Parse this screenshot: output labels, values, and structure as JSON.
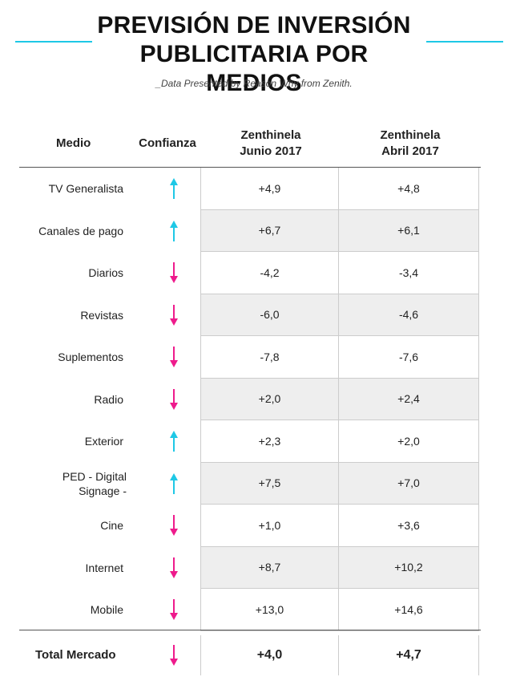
{
  "header": {
    "title_line1": "PREVISIÓN DE INVERSIÓN",
    "title_line2": "PUBLICITARIA POR MEDIOS",
    "subtitle": "_Data Presented by Reason Why from Zenith."
  },
  "colors": {
    "accent_up": "#1ec8e6",
    "accent_down": "#ee1b8c"
  },
  "table": {
    "columns": {
      "medio": "Medio",
      "confianza": "Confianza",
      "junio_l1": "Zenthinela",
      "junio_l2": "Junio 2017",
      "abril_l1": "Zenthinela",
      "abril_l2": "Abril 2017"
    },
    "rows": [
      {
        "medio": "TV Generalista",
        "trend": "up",
        "icon": "arrow-up-icon",
        "junio": "+4,9",
        "abril": "+4,8"
      },
      {
        "medio": "Canales de pago",
        "trend": "up",
        "icon": "arrow-up-icon",
        "junio": "+6,7",
        "abril": "+6,1"
      },
      {
        "medio": "Diarios",
        "trend": "down",
        "icon": "arrow-down-icon",
        "junio": "-4,2",
        "abril": "-3,4"
      },
      {
        "medio": "Revistas",
        "trend": "down",
        "icon": "arrow-down-icon",
        "junio": "-6,0",
        "abril": "-4,6"
      },
      {
        "medio": "Suplementos",
        "trend": "down",
        "icon": "arrow-down-icon",
        "junio": "-7,8",
        "abril": "-7,6"
      },
      {
        "medio": "Radio",
        "trend": "down",
        "icon": "arrow-down-icon",
        "junio": "+2,0",
        "abril": "+2,4"
      },
      {
        "medio": "Exterior",
        "trend": "up",
        "icon": "arrow-up-icon",
        "junio": "+2,3",
        "abril": "+2,0"
      },
      {
        "medio": "PED - Digital Signage -",
        "trend": "up",
        "icon": "arrow-up-icon",
        "junio": "+7,5",
        "abril": "+7,0"
      },
      {
        "medio": "Cine",
        "trend": "down",
        "icon": "arrow-down-icon",
        "junio": "+1,0",
        "abril": "+3,6"
      },
      {
        "medio": "Internet",
        "trend": "down",
        "icon": "arrow-down-icon",
        "junio": "+8,7",
        "abril": "+10,2"
      },
      {
        "medio": "Mobile",
        "trend": "down",
        "icon": "arrow-down-icon",
        "junio": "+13,0",
        "abril": "+14,6"
      }
    ],
    "total": {
      "medio": "Total Mercado",
      "trend": "down",
      "icon": "arrow-down-icon",
      "junio": "+4,0",
      "abril": "+4,7"
    }
  }
}
